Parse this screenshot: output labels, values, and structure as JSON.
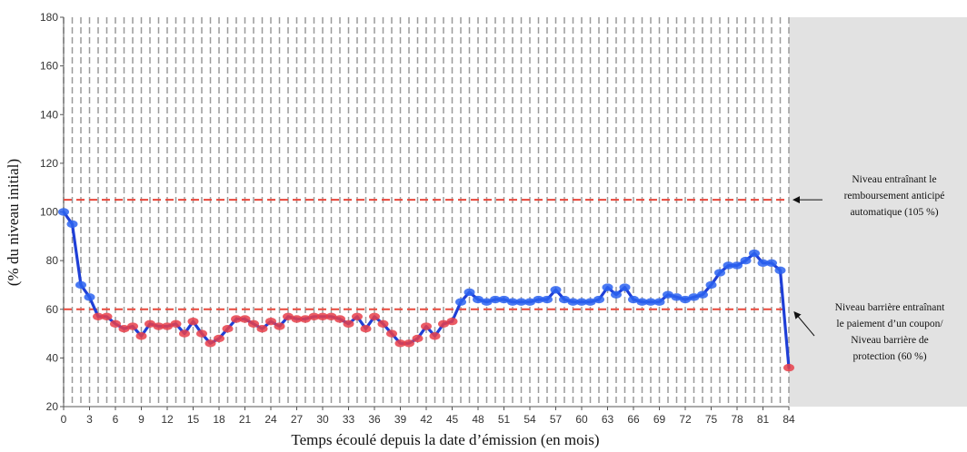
{
  "chart_data": {
    "type": "line",
    "xlabel": "Temps écoulé depuis la date d’émission (en mois)",
    "ylabel": "(% du niveau initial)",
    "xlim": [
      0,
      84
    ],
    "ylim": [
      20,
      180
    ],
    "x_ticks": [
      0,
      3,
      6,
      9,
      12,
      15,
      18,
      21,
      24,
      27,
      30,
      33,
      36,
      39,
      42,
      45,
      48,
      51,
      54,
      57,
      60,
      63,
      66,
      69,
      72,
      75,
      78,
      81,
      84
    ],
    "x_tick_labels": [
      "0",
      "3",
      "6",
      "9",
      "12",
      "15",
      "18",
      "21",
      "24",
      "27",
      "30",
      "33",
      "36",
      "39",
      "42",
      "45",
      "48",
      "51",
      "54",
      "57",
      "60",
      "63",
      "66",
      "69",
      "72",
      "75",
      "78",
      "81",
      "84"
    ],
    "y_ticks": [
      20,
      40,
      60,
      80,
      100,
      120,
      140,
      160,
      180
    ],
    "y_tick_labels": [
      "20",
      "40",
      "60",
      "80",
      "100",
      "120",
      "140",
      "160",
      "180"
    ],
    "grid": "vertical dashed lines at each month",
    "shaded_region": {
      "x_from": 84,
      "color": "#e2e2e2"
    },
    "reference_lines": [
      {
        "y": 105,
        "style": "dashed",
        "color": "#e8483c",
        "label_lines": [
          "Niveau entraînant  le",
          "remboursement anticipé",
          "automatique (105 %)"
        ]
      },
      {
        "y": 60,
        "style": "dashed",
        "color": "#e8483c",
        "label_lines": [
          "Niveau barrière entraînant",
          "le paiement d’un coupon/",
          "Niveau barrière de",
          "protection (60 %)"
        ]
      }
    ],
    "series": [
      {
        "line_color": "#1f3fd6",
        "marker_color_above_barrier": "#2b63f0",
        "marker_color_below_barrier": "#e8404a",
        "x": [
          0,
          1,
          2,
          3,
          4,
          5,
          6,
          7,
          8,
          9,
          10,
          11,
          12,
          13,
          14,
          15,
          16,
          17,
          18,
          19,
          20,
          21,
          22,
          23,
          24,
          25,
          26,
          27,
          28,
          29,
          30,
          31,
          32,
          33,
          34,
          35,
          36,
          37,
          38,
          39,
          40,
          41,
          42,
          43,
          44,
          45,
          46,
          47,
          48,
          49,
          50,
          51,
          52,
          53,
          54,
          55,
          56,
          57,
          58,
          59,
          60,
          61,
          62,
          63,
          64,
          65,
          66,
          67,
          68,
          69,
          70,
          71,
          72,
          73,
          74,
          75,
          76,
          77,
          78,
          79,
          80,
          81,
          82,
          83,
          84
        ],
        "y": [
          100,
          95,
          70,
          65,
          57,
          57,
          54,
          52,
          53,
          49,
          54,
          53,
          53,
          54,
          50,
          55,
          50,
          46,
          48,
          52,
          56,
          56,
          54,
          52,
          55,
          53,
          57,
          56,
          56,
          57,
          57,
          57,
          56,
          54,
          57,
          52,
          57,
          54,
          50,
          46,
          46,
          48,
          53,
          49,
          54,
          55,
          63,
          67,
          64,
          63,
          64,
          64,
          63,
          63,
          63,
          64,
          64,
          68,
          64,
          63,
          63,
          63,
          64,
          69,
          66,
          69,
          64,
          63,
          63,
          63,
          66,
          65,
          64,
          65,
          66,
          70,
          75,
          78,
          78,
          80,
          83,
          79,
          79,
          76,
          36
        ]
      }
    ]
  }
}
